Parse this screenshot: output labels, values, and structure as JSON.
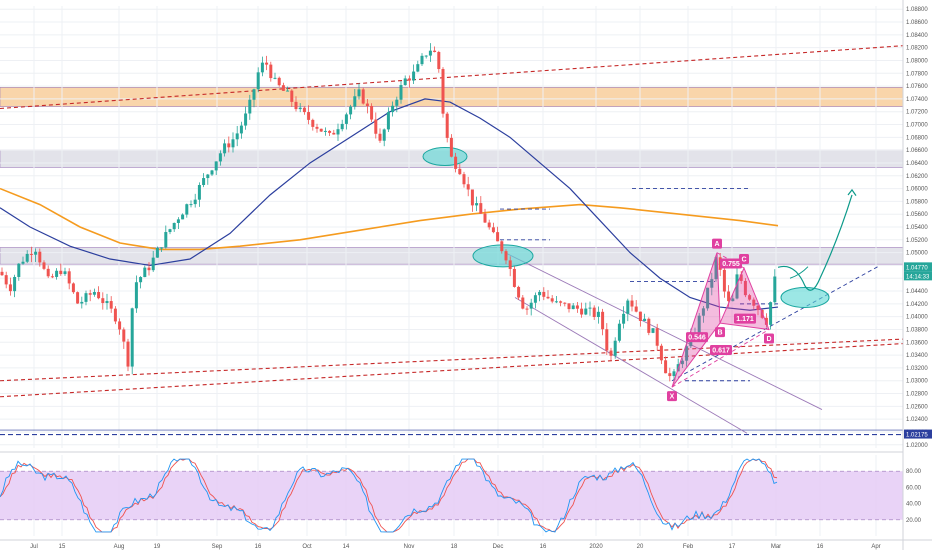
{
  "chart_data": {
    "type": "candlestick",
    "symbol_pair_note": "",
    "price_axis": {
      "ticks": [
        "1.08800",
        "1.08600",
        "1.08400",
        "1.08200",
        "1.08000",
        "1.07800",
        "1.07600",
        "1.07400",
        "1.07200",
        "1.07000",
        "1.06800",
        "1.06600",
        "1.06400",
        "1.06200",
        "1.06000",
        "1.05800",
        "1.05600",
        "1.05400",
        "1.05200",
        "1.05000",
        "1.04800",
        "1.04600",
        "1.04400",
        "1.04200",
        "1.04000",
        "1.03800",
        "1.03600",
        "1.03400",
        "1.03200",
        "1.03000",
        "1.02800",
        "1.02600",
        "1.02400",
        "1.02200",
        "1.02000"
      ],
      "range": [
        1.0195,
        1.0885
      ],
      "current_price": "1.04770",
      "current_time": "14:14:33",
      "support_price": "1.02175"
    },
    "stoch_axis": {
      "ticks": [
        "80.00",
        "60.00",
        "40.00",
        "20.00"
      ],
      "range": [
        0,
        100
      ],
      "overbought": 80,
      "oversold": 20
    },
    "time_axis": {
      "labels": [
        "Jul",
        "15",
        "Aug",
        "19",
        "Sep",
        "16",
        "Oct",
        "14",
        "Nov",
        "18",
        "Dec",
        "16",
        "2020",
        "20",
        "Feb",
        "17",
        "Mar",
        "16",
        "Apr"
      ]
    },
    "zones": [
      {
        "name": "resistance-zone-orange",
        "low": 1.0728,
        "high": 1.0758,
        "color": "#f7c78e"
      },
      {
        "name": "zone-gray-upper",
        "low": 1.0633,
        "high": 1.066,
        "color": "#d9d9e3"
      },
      {
        "name": "zone-gray-lower",
        "low": 1.0482,
        "high": 1.0508,
        "color": "#d9d9e3"
      }
    ],
    "harmonic_points": [
      {
        "label": "X",
        "price": 1.029
      },
      {
        "label": "A",
        "price": 1.05
      },
      {
        "label": "B",
        "price": 1.039
      },
      {
        "label": "C",
        "price": 1.0476
      },
      {
        "label": "D",
        "price": 1.038
      }
    ],
    "harmonic_ratios": [
      "0.546",
      "0.617",
      "0.755",
      "1.171"
    ],
    "colors": {
      "up": "#26a69a",
      "down": "#ef5350",
      "ma_slow": "#f59b1f",
      "ma_fast": "#2c3f9e",
      "stoch_k": "#2196f3",
      "stoch_d": "#ef5350",
      "pattern": "#e040a0",
      "forecast": "#0c9a8a",
      "trend": "#c62828"
    }
  }
}
